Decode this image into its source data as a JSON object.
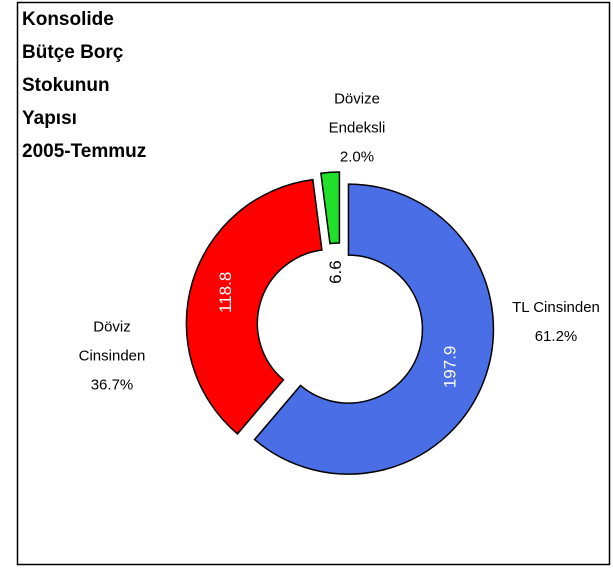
{
  "chart_data": {
    "type": "donut",
    "title": [
      "Konsolide",
      "Bütçe Borç",
      "Stokunun",
      "Yapısı",
      "2005-Temmuz"
    ],
    "categories": [
      "TL Cinsinden",
      "Döviz Cinsinden",
      "Dövize Endeksli"
    ],
    "values": [
      197.9,
      118.8,
      6.6
    ],
    "percentages": [
      61.2,
      36.7,
      2.0
    ],
    "percentage_labels": [
      "61.2%",
      "36.7%",
      "2.0%"
    ],
    "colors": [
      "#4a6ee6",
      "#ff0000",
      "#22e02a"
    ]
  }
}
